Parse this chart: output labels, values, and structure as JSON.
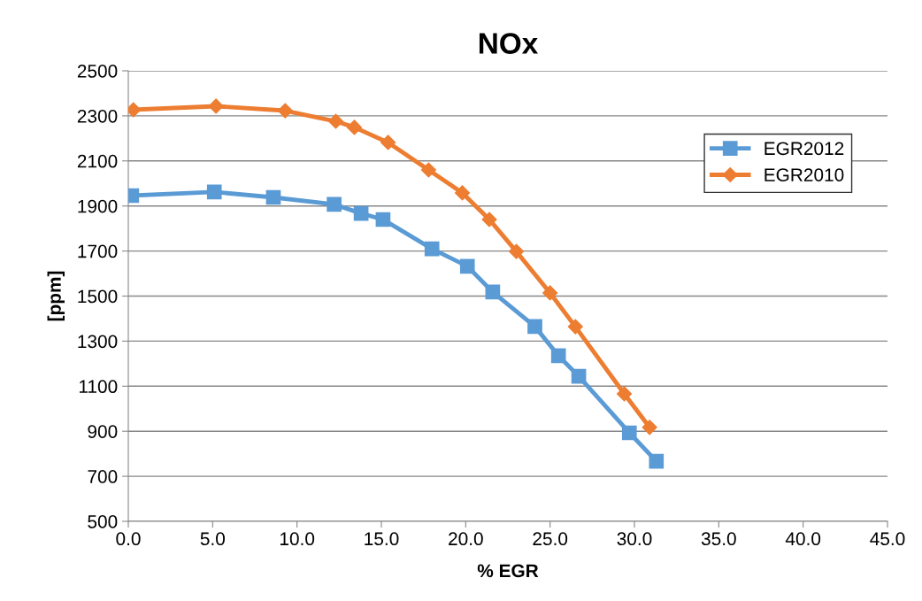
{
  "chart_data": {
    "type": "line",
    "title": "NOx",
    "xlabel": "% EGR",
    "ylabel": "[ppm]",
    "xlim": [
      0,
      45
    ],
    "xticks": [
      {
        "value": 0,
        "label": "0.0"
      },
      {
        "value": 5,
        "label": "5.0"
      },
      {
        "value": 10,
        "label": "10.0"
      },
      {
        "value": 15,
        "label": "15.0"
      },
      {
        "value": 20,
        "label": "20.0"
      },
      {
        "value": 25,
        "label": "25.0"
      },
      {
        "value": 30,
        "label": "30.0"
      },
      {
        "value": 35,
        "label": "35.0"
      },
      {
        "value": 40,
        "label": "40.0"
      },
      {
        "value": 45,
        "label": "45.0"
      }
    ],
    "ylim": [
      500,
      2500
    ],
    "yticks": [
      500,
      700,
      900,
      1100,
      1300,
      1500,
      1700,
      1900,
      2100,
      2300,
      2500
    ],
    "grid": "y",
    "legend": "top right",
    "series": [
      {
        "name": "EGR2012",
        "color": "#5b9bd5",
        "marker": "square",
        "x": [
          0.2,
          5.1,
          8.6,
          12.2,
          13.8,
          15.1,
          18.0,
          20.1,
          21.6,
          24.1,
          25.5,
          26.7,
          29.7,
          31.3
        ],
        "values": [
          1946,
          1962,
          1938,
          1907,
          1867,
          1840,
          1710,
          1632,
          1518,
          1365,
          1235,
          1144,
          893,
          767
        ]
      },
      {
        "name": "EGR2010",
        "color": "#ed7d31",
        "marker": "diamond",
        "x": [
          0.3,
          5.2,
          9.3,
          12.3,
          13.4,
          15.4,
          17.8,
          19.8,
          21.4,
          23.0,
          25.0,
          26.5,
          29.4,
          30.9
        ],
        "values": [
          2327,
          2343,
          2323,
          2276,
          2249,
          2182,
          2060,
          1958,
          1840,
          1698,
          1514,
          1364,
          1066,
          917
        ]
      }
    ]
  }
}
